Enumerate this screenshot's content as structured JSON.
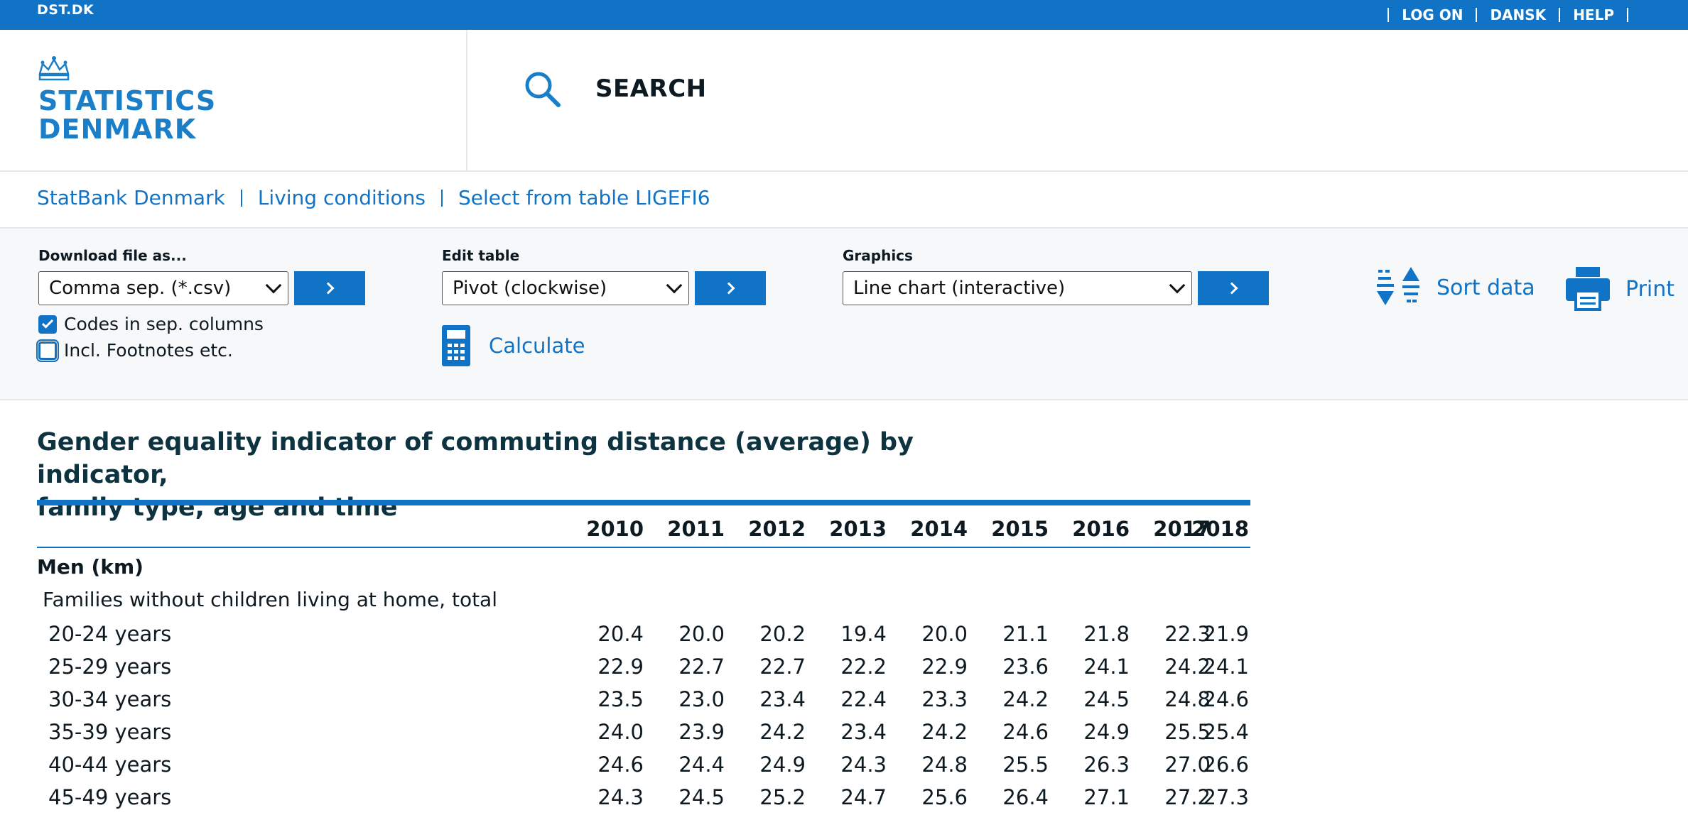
{
  "topbar": {
    "brand": "DST.DK",
    "links": [
      "LOG ON",
      "DANSK",
      "HELP"
    ]
  },
  "header": {
    "logo_line1": "STATISTICS",
    "logo_line2": "DENMARK",
    "search_label": "SEARCH"
  },
  "breadcrumb": [
    "StatBank Denmark",
    "Living conditions",
    "Select from table LIGEFI6"
  ],
  "toolbar": {
    "download": {
      "label": "Download file as...",
      "selected": "Comma sep. (*.csv)"
    },
    "edit": {
      "label": "Edit table",
      "selected": "Pivot (clockwise)"
    },
    "graphics": {
      "label": "Graphics",
      "selected": "Line chart (interactive)"
    },
    "checkboxes": [
      {
        "label": "Codes in sep. columns",
        "checked": true
      },
      {
        "label": "Incl. Footnotes etc.",
        "checked": false
      }
    ],
    "calculate": "Calculate",
    "sort": "Sort data",
    "print": "Print"
  },
  "colors": {
    "brand_blue": "#1173c6",
    "text_dark": "#0e3340"
  },
  "table": {
    "title_line1": "Gender equality indicator of commuting distance (average) by indicator,",
    "title_line2": "family type, age and time",
    "years": [
      "2010",
      "2011",
      "2012",
      "2013",
      "2014",
      "2015",
      "2016",
      "2017",
      "2018"
    ],
    "indicator": "Men (km)",
    "family_type": "Families without children living at home, total",
    "rows": [
      {
        "label": "20-24 years",
        "values": [
          "20.4",
          "20.0",
          "20.2",
          "19.4",
          "20.0",
          "21.1",
          "21.8",
          "22.3",
          "21.9"
        ]
      },
      {
        "label": "25-29 years",
        "values": [
          "22.9",
          "22.7",
          "22.7",
          "22.2",
          "22.9",
          "23.6",
          "24.1",
          "24.2",
          "24.1"
        ]
      },
      {
        "label": "30-34 years",
        "values": [
          "23.5",
          "23.0",
          "23.4",
          "22.4",
          "23.3",
          "24.2",
          "24.5",
          "24.8",
          "24.6"
        ]
      },
      {
        "label": "35-39 years",
        "values": [
          "24.0",
          "23.9",
          "24.2",
          "23.4",
          "24.2",
          "24.6",
          "24.9",
          "25.5",
          "25.4"
        ]
      },
      {
        "label": "40-44 years",
        "values": [
          "24.6",
          "24.4",
          "24.9",
          "24.3",
          "24.8",
          "25.5",
          "26.3",
          "27.0",
          "26.6"
        ]
      },
      {
        "label": "45-49 years",
        "values": [
          "24.3",
          "24.5",
          "25.2",
          "24.7",
          "25.6",
          "26.4",
          "27.1",
          "27.2",
          "27.3"
        ]
      }
    ]
  }
}
